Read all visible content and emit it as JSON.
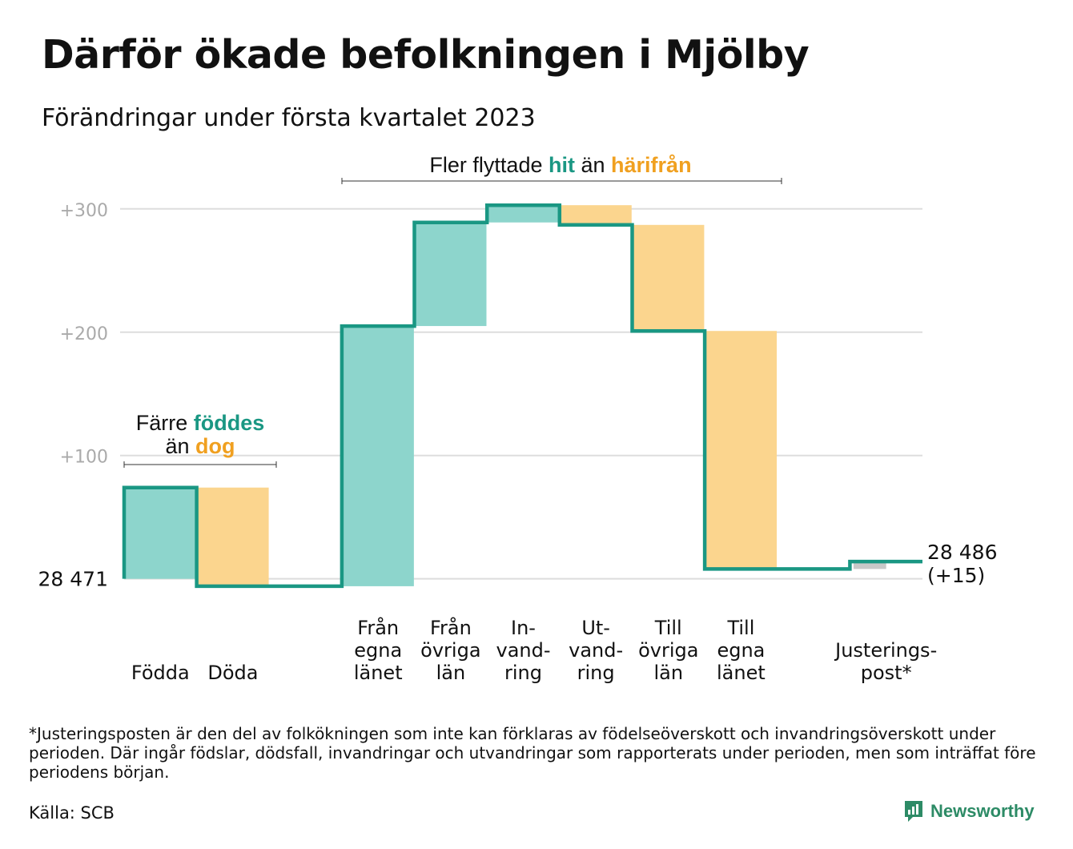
{
  "title": "Därför ökade befolkningen i Mjölby",
  "subtitle": "Förändringar under första kvartalet 2023",
  "chart_data": {
    "type": "waterfall",
    "start_value": 28471,
    "start_label": "28 471",
    "end_label_value": "28 486",
    "end_label_change": "(+15)",
    "yticks": [
      {
        "value": 300,
        "label": "+300"
      },
      {
        "value": 200,
        "label": "+200"
      },
      {
        "value": 100,
        "label": "+100"
      }
    ],
    "ylim": [
      -8,
      320
    ],
    "grid": true,
    "colors": {
      "increase": "#8dd5cc",
      "decrease": "#fbd58e",
      "line": "#1a9783",
      "adjustment": "#c8c8c8",
      "grid": "#dddddd",
      "tick": "#aaaaaa"
    },
    "steps": [
      {
        "label_lines": [
          "Födda"
        ],
        "change": 74,
        "kind": "increase"
      },
      {
        "label_lines": [
          "Döda"
        ],
        "change": -80,
        "kind": "decrease"
      },
      {
        "label_lines": [],
        "change": 0,
        "kind": "gap"
      },
      {
        "label_lines": [
          "Från",
          "egna",
          "länet"
        ],
        "change": 211,
        "kind": "increase"
      },
      {
        "label_lines": [
          "Från",
          "övriga",
          "län"
        ],
        "change": 84,
        "kind": "increase"
      },
      {
        "label_lines": [
          "In-",
          "vand-",
          "ring"
        ],
        "change": 14,
        "kind": "increase"
      },
      {
        "label_lines": [
          "Ut-",
          "vand-",
          "ring"
        ],
        "change": -16,
        "kind": "decrease"
      },
      {
        "label_lines": [
          "Till",
          "övriga",
          "län"
        ],
        "change": -86,
        "kind": "decrease"
      },
      {
        "label_lines": [
          "Till",
          "egna",
          "länet"
        ],
        "change": -193,
        "kind": "decrease"
      },
      {
        "label_lines": [],
        "change": 0,
        "kind": "gap"
      },
      {
        "label_lines": [
          "Justerings-",
          "post*"
        ],
        "change": 6,
        "kind": "adjustment"
      }
    ],
    "annotations": [
      {
        "id": "births",
        "parts": [
          {
            "text": "Färre ",
            "style": "plain"
          },
          {
            "text": "föddes",
            "style": "teal"
          },
          {
            "text": "än ",
            "style": "plain"
          },
          {
            "text": "dog",
            "style": "orange"
          }
        ]
      },
      {
        "id": "migration",
        "parts": [
          {
            "text": "Fler flyttade ",
            "style": "plain"
          },
          {
            "text": "hit",
            "style": "teal"
          },
          {
            "text": " än ",
            "style": "plain"
          },
          {
            "text": "härifrån",
            "style": "orange"
          }
        ]
      }
    ]
  },
  "footnote": "*Justeringsposten är den del av folkökningen som inte kan förklaras av födelseöverskott och invandringsöverskott under perioden. Där ingår födslar, dödsfall, invandringar och utvandringar som rapporterats under perioden, men som inträffat före periodens början.",
  "source": "Källa: SCB",
  "brand": {
    "name": "Newsworthy",
    "icon": "newsworthy-chart-icon",
    "color": "#2d8b66"
  }
}
